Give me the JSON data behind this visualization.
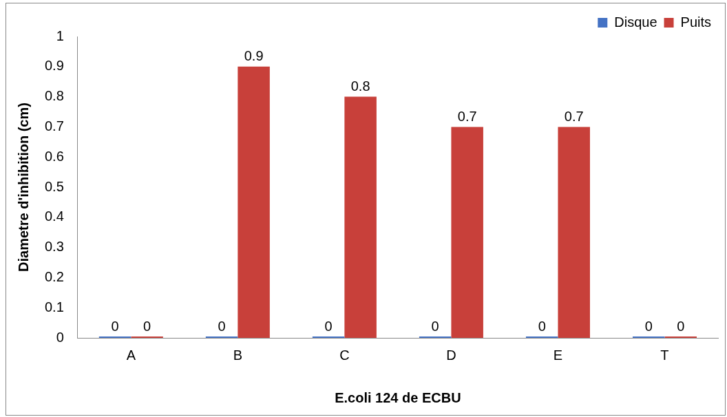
{
  "chart_data": {
    "type": "bar",
    "xlabel": "E.coli 124 de ECBU",
    "ylabel": "Diametre d'inhibition (cm)",
    "categories": [
      "A",
      "B",
      "C",
      "D",
      "E",
      "T"
    ],
    "series": [
      {
        "name": "Disque",
        "color": "#4472c4",
        "values": [
          0,
          0,
          0,
          0,
          0,
          0
        ]
      },
      {
        "name": "Puits",
        "color": "#c8403a",
        "values": [
          0,
          0.9,
          0.8,
          0.7,
          0.7,
          0
        ]
      }
    ],
    "ylim": [
      0,
      1
    ],
    "yticks": [
      0,
      0.1,
      0.2,
      0.3,
      0.4,
      0.5,
      0.6,
      0.7,
      0.8,
      0.9,
      1
    ],
    "grid": false,
    "legend": "top right",
    "data_labels": true
  }
}
